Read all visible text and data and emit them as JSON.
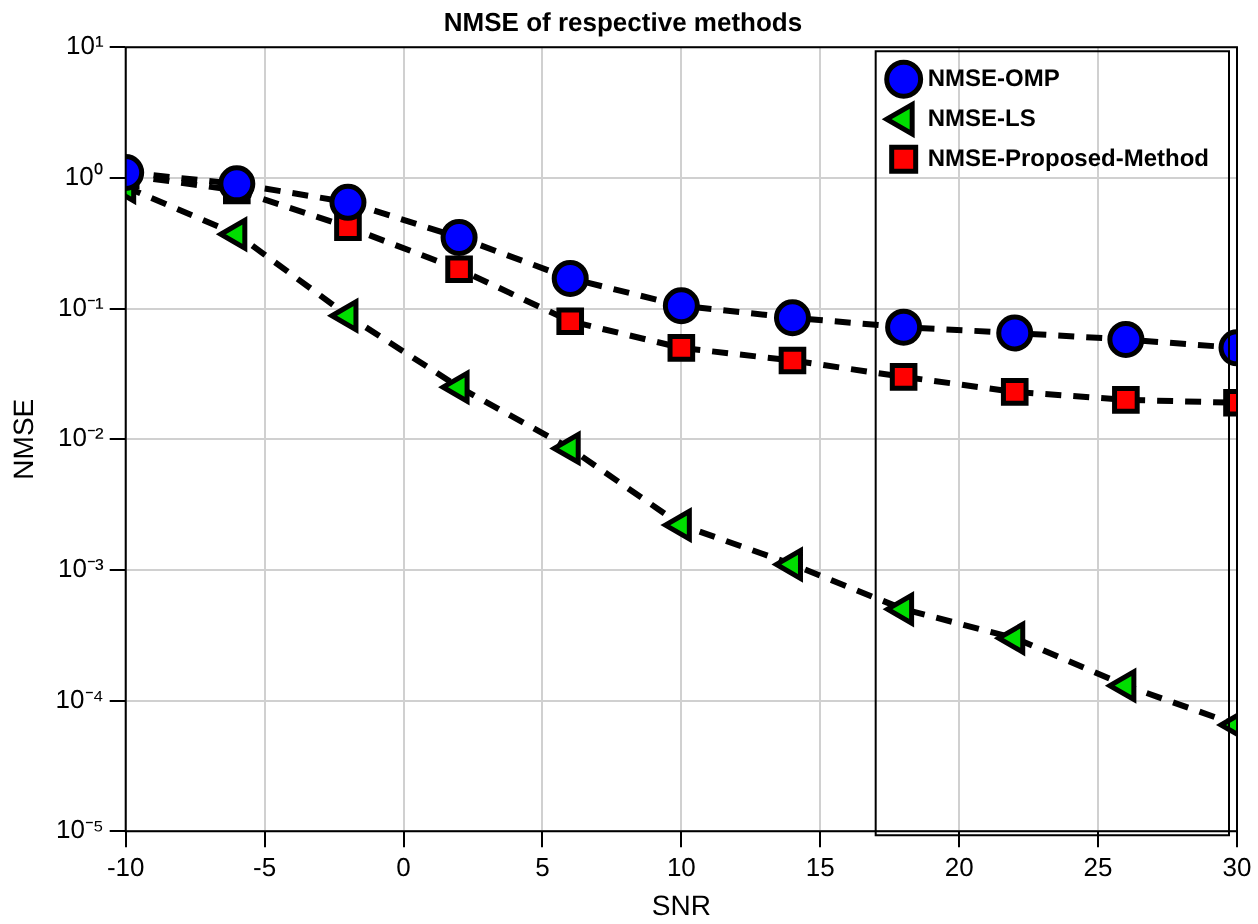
{
  "chart_data": {
    "type": "line",
    "title": "NMSE of respective methods",
    "xlabel": "SNR",
    "ylabel": "NMSE",
    "x": [
      -10,
      -6,
      -2,
      2,
      6,
      10,
      14,
      18,
      22,
      26,
      30
    ],
    "series": [
      {
        "name": "NMSE-OMP",
        "color": "#0000ff",
        "marker": "circle",
        "values": [
          1.1,
          0.9,
          0.65,
          0.35,
          0.17,
          0.105,
          0.085,
          0.072,
          0.065,
          0.058,
          0.05
        ]
      },
      {
        "name": "NMSE-LS",
        "color": "#00dd00",
        "marker": "triangle",
        "values": [
          0.85,
          0.37,
          0.088,
          0.025,
          0.0085,
          0.0022,
          0.0011,
          0.0005,
          0.0003,
          0.00013,
          6.5e-05
        ]
      },
      {
        "name": "NMSE-Proposed-Method",
        "color": "#ff0000",
        "marker": "square",
        "values": [
          1.05,
          0.8,
          0.42,
          0.2,
          0.08,
          0.05,
          0.04,
          0.03,
          0.023,
          0.02,
          0.019
        ]
      }
    ],
    "log": "y",
    "xlim": [
      -10,
      30
    ],
    "xticks": [
      -10,
      -5,
      0,
      5,
      10,
      15,
      20,
      25,
      30
    ],
    "ylim": [
      1e-05,
      10
    ],
    "yticks": [
      {
        "value": 1e-05,
        "label": "10⁻⁵"
      },
      {
        "value": 0.0001,
        "label": "10⁻⁴"
      },
      {
        "value": 0.001,
        "label": "10⁻³"
      },
      {
        "value": 0.01,
        "label": "10⁻²"
      },
      {
        "value": 0.1,
        "label": "10⁻¹"
      },
      {
        "value": 1,
        "label": "10⁰"
      },
      {
        "value": 10,
        "label": "10¹"
      }
    ],
    "grid": true,
    "legend": "top right",
    "line_style": "dashed"
  }
}
